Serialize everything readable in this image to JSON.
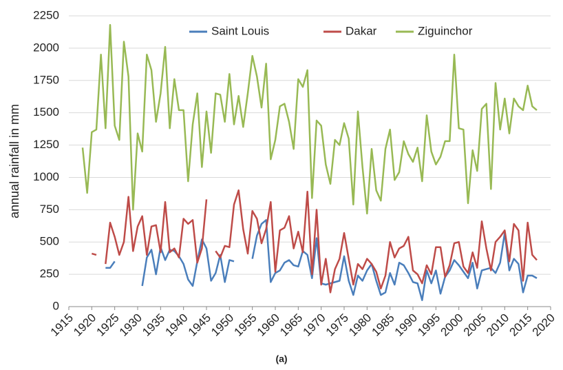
{
  "chart_data": {
    "type": "line",
    "ylabel": "annual rainfall in mm",
    "caption": "(a)",
    "legend": "top",
    "grid": true,
    "xlim": [
      1915,
      2020
    ],
    "xticks": [
      1915,
      1920,
      1925,
      1930,
      1935,
      1940,
      1945,
      1950,
      1955,
      1960,
      1965,
      1970,
      1975,
      1980,
      1985,
      1990,
      1995,
      2000,
      2005,
      2010,
      2015,
      2020
    ],
    "ylim": [
      0,
      2250
    ],
    "yticks": [
      0,
      250,
      500,
      750,
      1000,
      1250,
      1500,
      1750,
      2000,
      2250
    ],
    "x": [
      1918,
      1919,
      1920,
      1921,
      1922,
      1923,
      1924,
      1925,
      1926,
      1927,
      1928,
      1929,
      1930,
      1931,
      1932,
      1933,
      1934,
      1935,
      1936,
      1937,
      1938,
      1939,
      1940,
      1941,
      1942,
      1943,
      1944,
      1945,
      1946,
      1947,
      1948,
      1949,
      1950,
      1951,
      1952,
      1953,
      1954,
      1955,
      1956,
      1957,
      1958,
      1959,
      1960,
      1961,
      1962,
      1963,
      1964,
      1965,
      1966,
      1967,
      1968,
      1969,
      1970,
      1971,
      1972,
      1973,
      1974,
      1975,
      1976,
      1977,
      1978,
      1979,
      1980,
      1981,
      1982,
      1983,
      1984,
      1985,
      1986,
      1987,
      1988,
      1989,
      1990,
      1991,
      1992,
      1993,
      1994,
      1995,
      1996,
      1997,
      1998,
      1999,
      2000,
      2001,
      2002,
      2003,
      2004,
      2005,
      2006,
      2007,
      2008,
      2009,
      2010,
      2011,
      2012,
      2013,
      2014,
      2015,
      2016,
      2017
    ],
    "series": [
      {
        "name": "Saint Louis",
        "color": "#4a7ebb",
        "values": [
          null,
          null,
          null,
          null,
          null,
          300,
          300,
          350,
          null,
          null,
          null,
          null,
          null,
          160,
          380,
          440,
          250,
          460,
          360,
          440,
          430,
          390,
          330,
          210,
          160,
          350,
          520,
          450,
          200,
          260,
          400,
          190,
          360,
          350,
          null,
          null,
          null,
          370,
          550,
          640,
          670,
          190,
          260,
          280,
          340,
          360,
          320,
          310,
          430,
          400,
          220,
          530,
          180,
          170,
          180,
          190,
          200,
          390,
          200,
          90,
          240,
          200,
          280,
          330,
          200,
          90,
          110,
          260,
          170,
          340,
          320,
          260,
          190,
          180,
          50,
          280,
          180,
          280,
          100,
          230,
          280,
          360,
          320,
          270,
          220,
          340,
          140,
          280,
          290,
          300,
          260,
          340,
          570,
          280,
          370,
          330,
          110,
          240,
          240,
          220
        ]
      },
      {
        "name": "Dakar",
        "color": "#be4b48",
        "values": [
          null,
          null,
          410,
          400,
          null,
          330,
          650,
          540,
          400,
          500,
          850,
          430,
          620,
          700,
          400,
          620,
          630,
          420,
          810,
          420,
          450,
          380,
          680,
          640,
          670,
          340,
          450,
          830,
          null,
          430,
          380,
          470,
          460,
          790,
          900,
          600,
          410,
          740,
          680,
          490,
          600,
          810,
          270,
          590,
          610,
          700,
          450,
          580,
          420,
          890,
          250,
          750,
          170,
          370,
          110,
          290,
          370,
          570,
          370,
          170,
          330,
          290,
          370,
          330,
          270,
          140,
          240,
          500,
          380,
          450,
          470,
          540,
          280,
          250,
          180,
          320,
          250,
          460,
          460,
          230,
          320,
          490,
          500,
          310,
          260,
          420,
          300,
          660,
          450,
          280,
          500,
          540,
          590,
          350,
          640,
          590,
          200,
          650,
          400,
          360
        ]
      },
      {
        "name": "Ziguinchor",
        "color": "#98b954",
        "values": [
          1230,
          880,
          1350,
          1370,
          1950,
          1380,
          2180,
          1400,
          1290,
          2050,
          1780,
          750,
          1340,
          1200,
          1950,
          1830,
          1430,
          1650,
          2010,
          1380,
          1760,
          1520,
          1520,
          970,
          1410,
          1650,
          1080,
          1510,
          1190,
          1650,
          1640,
          1430,
          1800,
          1410,
          1630,
          1390,
          1650,
          1940,
          1780,
          1540,
          1880,
          1140,
          1290,
          1550,
          1570,
          1430,
          1220,
          1760,
          1700,
          1830,
          840,
          1440,
          1400,
          1100,
          950,
          1290,
          1250,
          1420,
          1300,
          790,
          1510,
          1080,
          720,
          1220,
          900,
          820,
          1220,
          1370,
          980,
          1040,
          1280,
          1180,
          1120,
          1230,
          970,
          1480,
          1200,
          1100,
          1160,
          1280,
          1280,
          1950,
          1380,
          1370,
          800,
          1210,
          1050,
          1530,
          1570,
          910,
          1730,
          1370,
          1610,
          1340,
          1610,
          1550,
          1520,
          1710,
          1550,
          1520
        ]
      }
    ]
  }
}
